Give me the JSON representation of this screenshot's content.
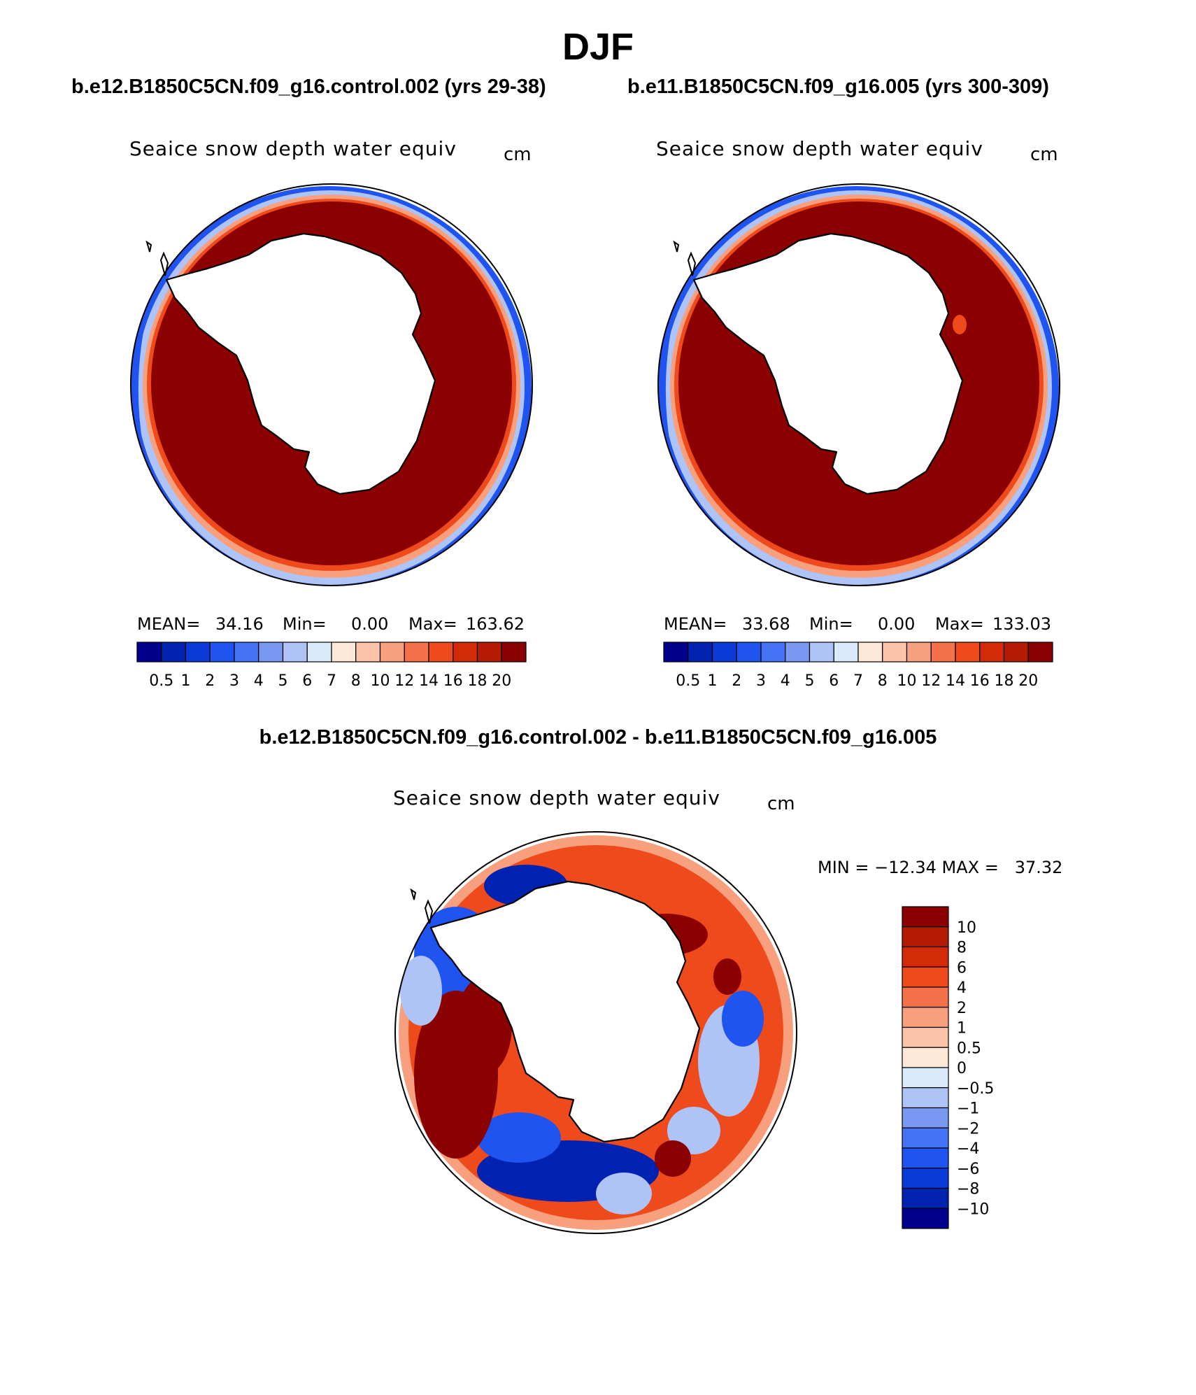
{
  "title": "DJF",
  "panels": [
    {
      "case_title": "b.e12.B1850C5CN.f09_g16.control.002 (yrs 29-38)",
      "variable": "Seaice snow depth water equiv",
      "units": "cm",
      "stats": {
        "mean_label": "MEAN=",
        "mean": "34.16",
        "min_label": "Min=",
        "min": "0.00",
        "max_label": "Max=",
        "max": "163.62"
      }
    },
    {
      "case_title": "b.e11.B1850C5CN.f09_g16.005 (yrs 300-309)",
      "variable": "Seaice snow depth water equiv",
      "units": "cm",
      "stats": {
        "mean_label": "MEAN=",
        "mean": "33.68",
        "min_label": "Min=",
        "min": "0.00",
        "max_label": "Max=",
        "max": "133.03"
      }
    }
  ],
  "difference": {
    "title": "b.e12.B1850C5CN.f09_g16.control.002 - b.e11.B1850C5CN.f09_g16.005",
    "variable": "Seaice snow depth water equiv",
    "units": "cm",
    "stats_text": "MIN = −12.34 MAX =   37.32"
  },
  "colorbars": {
    "absolute": {
      "labels": [
        "0.5",
        "1",
        "2",
        "3",
        "4",
        "5",
        "6",
        "7",
        "8",
        "10",
        "12",
        "14",
        "16",
        "18",
        "20"
      ],
      "colors": [
        "#00008c",
        "#0022b0",
        "#0a3ad8",
        "#1f54f0",
        "#4673f5",
        "#7998f2",
        "#aec3f6",
        "#daeafb",
        "#fde7d6",
        "#fbc4a8",
        "#f8a07e",
        "#f4714a",
        "#ee4a1c",
        "#d32a08",
        "#b31b03",
        "#8b0000"
      ]
    },
    "difference": {
      "labels": [
        "10",
        "8",
        "6",
        "4",
        "2",
        "1",
        "0.5",
        "0",
        "−0.5",
        "−1",
        "−2",
        "−4",
        "−6",
        "−8",
        "−10"
      ],
      "colors": [
        "#8b0000",
        "#b31b03",
        "#d32a08",
        "#ee4a1c",
        "#f4714a",
        "#f8a07e",
        "#fbc4a8",
        "#fde7d6",
        "#daeafb",
        "#aec3f6",
        "#7998f2",
        "#4673f5",
        "#1f54f0",
        "#0a3ad8",
        "#0022b0",
        "#00008c"
      ]
    }
  },
  "map_colors": {
    "high": "#8b0000",
    "mid_warm": "#ee4a1c",
    "light_warm": "#f8a07e",
    "light_cool": "#aec3f6",
    "mid_cool": "#1f54f0",
    "dark_cool": "#0022b0",
    "land": "#ffffff",
    "outline": "#000000"
  }
}
